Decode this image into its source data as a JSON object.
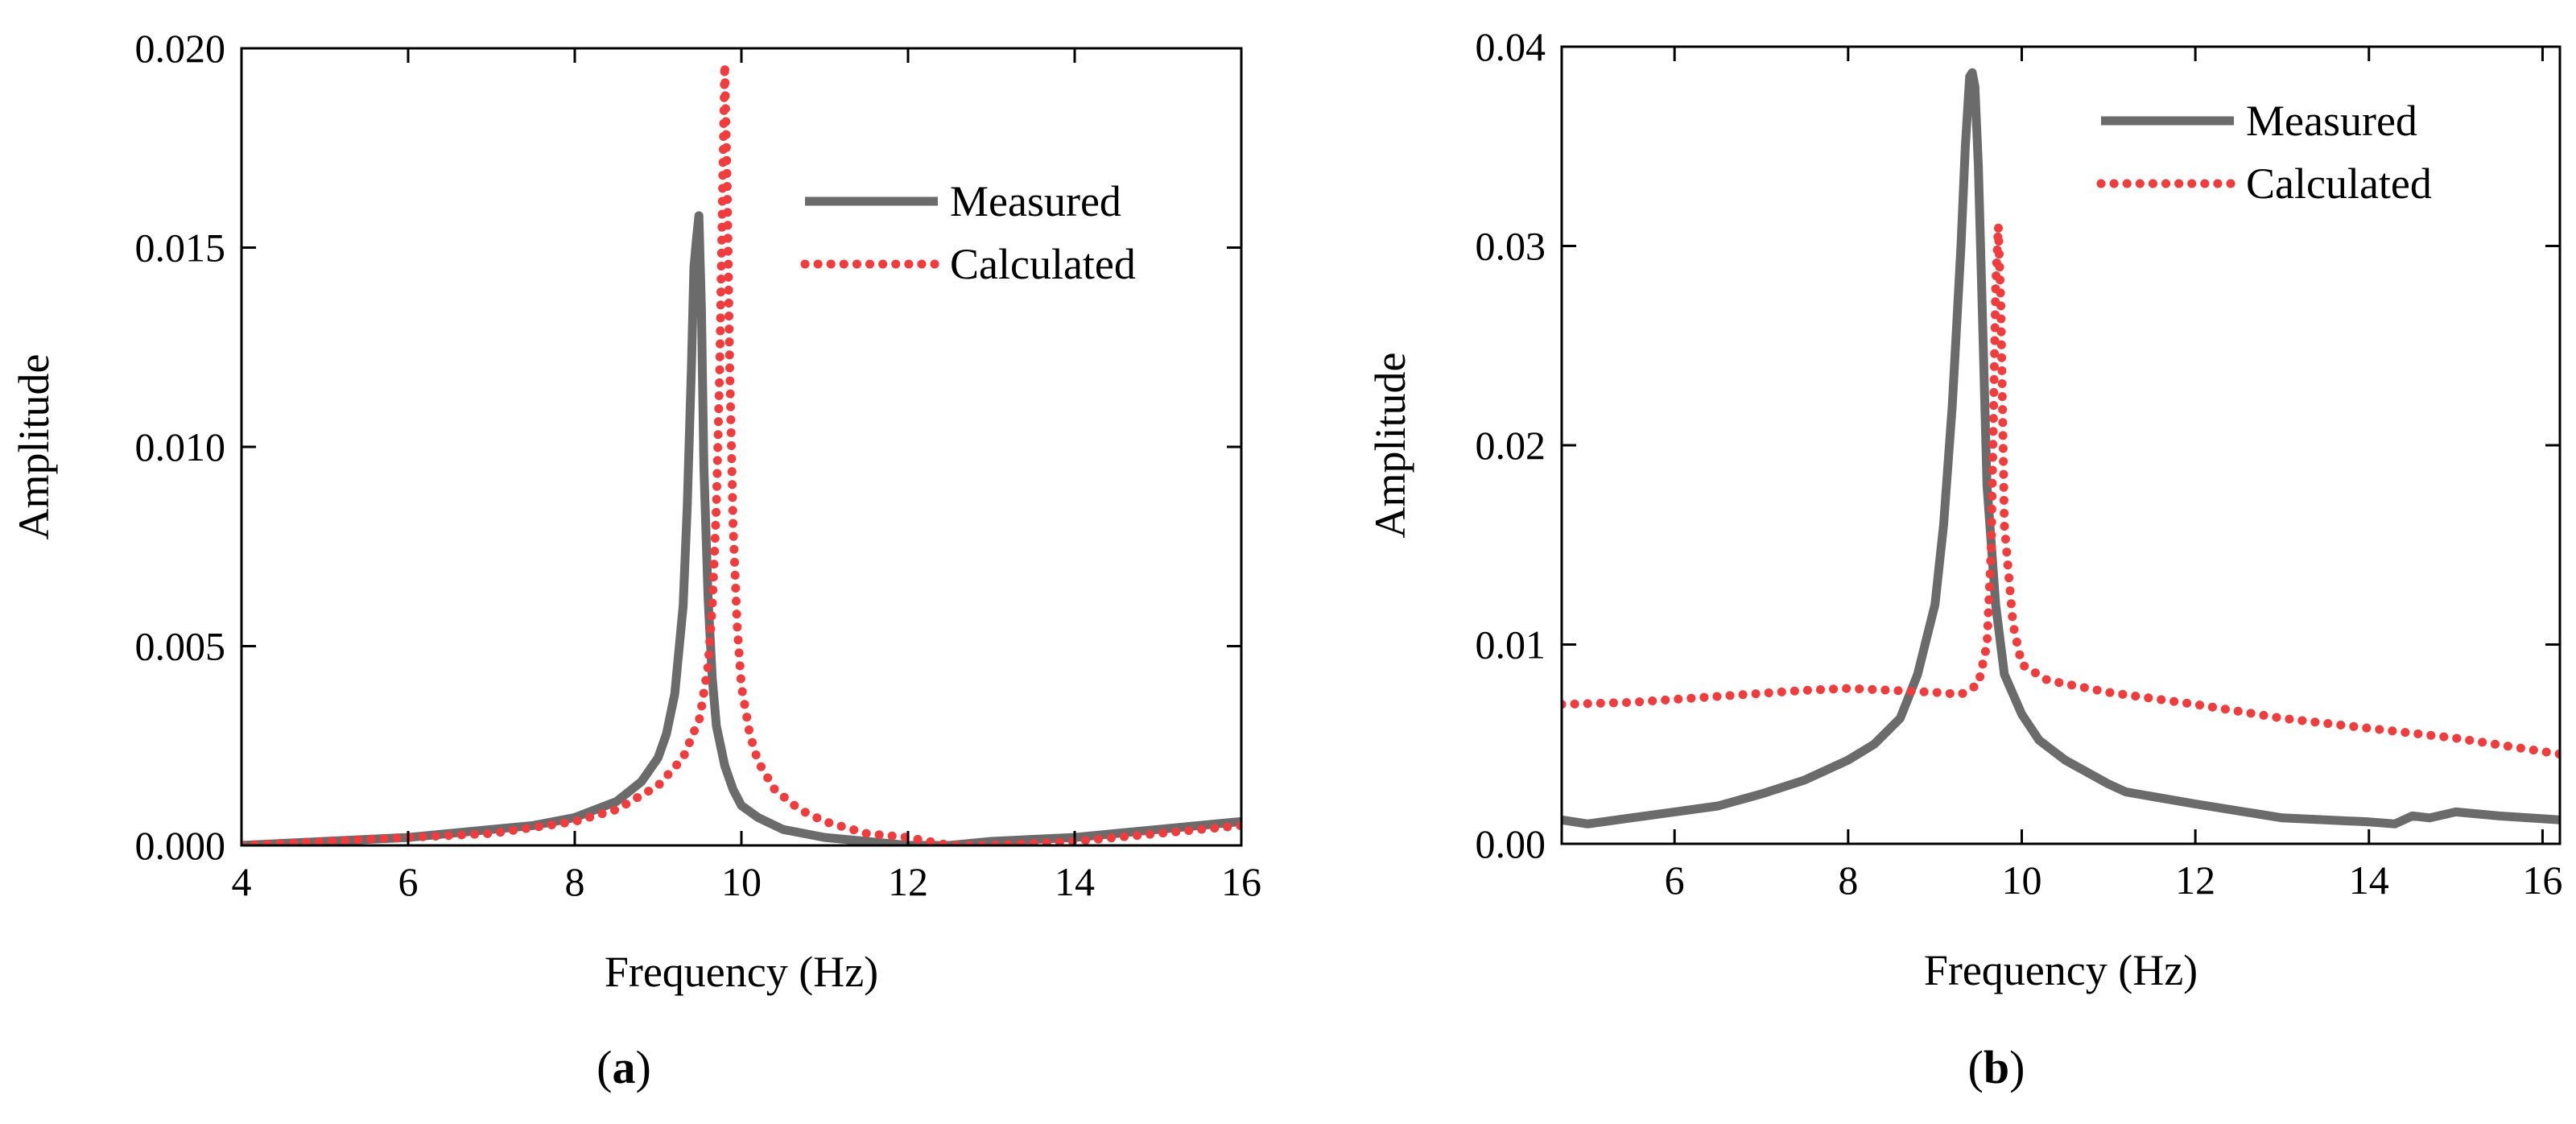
{
  "chart_data": [
    {
      "type": "line",
      "panel_label": "a",
      "xlabel": "Frequency (Hz)",
      "ylabel": "Amplitude",
      "xlim": [
        4,
        16
      ],
      "ylim": [
        0,
        0.02
      ],
      "xticks": [
        4,
        6,
        8,
        10,
        12,
        14,
        16
      ],
      "xtick_labels": [
        "4",
        "6",
        "8",
        "10",
        "12",
        "14",
        "16"
      ],
      "yticks": [
        0,
        0.005,
        0.01,
        0.015,
        0.02
      ],
      "ytick_labels": [
        "0.000",
        "0.005",
        "0.010",
        "0.015",
        "0.020"
      ],
      "grid": false,
      "legend_position": "top-right",
      "series": [
        {
          "name": "Measured",
          "style": "solid",
          "color": "#6b6b6b",
          "x": [
            4.0,
            5.0,
            6.0,
            7.0,
            7.5,
            8.0,
            8.5,
            8.8,
            9.0,
            9.1,
            9.2,
            9.3,
            9.35,
            9.4,
            9.43,
            9.46,
            9.49,
            9.52,
            9.55,
            9.6,
            9.65,
            9.7,
            9.8,
            9.9,
            10.0,
            10.2,
            10.5,
            11.0,
            11.5,
            12.0,
            12.5,
            13.0,
            14.0,
            15.0,
            16.0
          ],
          "y": [
            0.0,
            0.0001,
            0.0002,
            0.0004,
            0.0005,
            0.0007,
            0.0011,
            0.0016,
            0.0022,
            0.0028,
            0.0038,
            0.006,
            0.0085,
            0.012,
            0.0145,
            0.0152,
            0.0158,
            0.0135,
            0.0095,
            0.0062,
            0.0042,
            0.003,
            0.002,
            0.0014,
            0.001,
            0.0007,
            0.0004,
            0.0002,
            0.0001,
            0.0,
            0.0,
            0.0001,
            0.0002,
            0.0004,
            0.0006
          ]
        },
        {
          "name": "Calculated",
          "style": "dotted",
          "color": "#f03c3c",
          "x": [
            4.0,
            5.0,
            6.0,
            7.0,
            8.0,
            8.5,
            9.0,
            9.3,
            9.5,
            9.6,
            9.65,
            9.7,
            9.74,
            9.77,
            9.8,
            9.83,
            9.86,
            9.9,
            9.95,
            10.0,
            10.1,
            10.2,
            10.4,
            10.7,
            11.0,
            11.5,
            12.0,
            12.5,
            13.0,
            14.0,
            15.0,
            16.0
          ],
          "y": [
            0.0,
            0.0001,
            0.0002,
            0.0003,
            0.0006,
            0.0009,
            0.0015,
            0.0022,
            0.0032,
            0.0045,
            0.006,
            0.0085,
            0.012,
            0.016,
            0.0196,
            0.0165,
            0.012,
            0.008,
            0.0055,
            0.004,
            0.0028,
            0.0021,
            0.0014,
            0.0009,
            0.0006,
            0.0003,
            0.0002,
            0.0,
            0.0,
            0.0001,
            0.0003,
            0.0005
          ]
        }
      ]
    },
    {
      "type": "line",
      "panel_label": "b",
      "xlabel": "Frequency (Hz)",
      "ylabel": "Amplitude",
      "xlim": [
        4.7,
        16.2
      ],
      "ylim": [
        0,
        0.04
      ],
      "xticks": [
        6,
        8,
        10,
        12,
        14,
        16
      ],
      "xtick_labels": [
        "6",
        "8",
        "10",
        "12",
        "14",
        "16"
      ],
      "yticks": [
        0,
        0.01,
        0.02,
        0.03,
        0.04
      ],
      "ytick_labels": [
        "0.00",
        "0.01",
        "0.02",
        "0.03",
        "0.04"
      ],
      "grid": false,
      "legend_position": "top-right",
      "series": [
        {
          "name": "Measured",
          "style": "solid",
          "color": "#6b6b6b",
          "x": [
            4.7,
            5.0,
            5.5,
            6.0,
            6.5,
            7.0,
            7.5,
            8.0,
            8.3,
            8.6,
            8.8,
            9.0,
            9.1,
            9.2,
            9.3,
            9.35,
            9.4,
            9.43,
            9.46,
            9.5,
            9.55,
            9.6,
            9.7,
            9.8,
            10.0,
            10.2,
            10.5,
            11.0,
            11.2,
            12.0,
            13.0,
            14.0,
            14.3,
            14.5,
            14.7,
            15.0,
            15.5,
            16.2
          ],
          "y": [
            0.0012,
            0.001,
            0.0013,
            0.0016,
            0.0019,
            0.0025,
            0.0032,
            0.0042,
            0.005,
            0.0063,
            0.0085,
            0.012,
            0.016,
            0.022,
            0.03,
            0.035,
            0.0385,
            0.0387,
            0.038,
            0.034,
            0.026,
            0.018,
            0.012,
            0.0085,
            0.0065,
            0.0052,
            0.0042,
            0.003,
            0.0026,
            0.002,
            0.0013,
            0.0011,
            0.001,
            0.0014,
            0.0013,
            0.0016,
            0.0014,
            0.0012
          ]
        },
        {
          "name": "Calculated",
          "style": "dotted",
          "color": "#f03c3c",
          "x": [
            4.7,
            5.5,
            6.5,
            7.5,
            8.0,
            8.5,
            9.0,
            9.3,
            9.5,
            9.6,
            9.65,
            9.68,
            9.7,
            9.73,
            9.76,
            9.8,
            9.9,
            10.0,
            10.3,
            11.0,
            12.0,
            13.0,
            14.0,
            15.0,
            16.2
          ],
          "y": [
            0.007,
            0.0071,
            0.0074,
            0.0077,
            0.0078,
            0.0077,
            0.0076,
            0.0075,
            0.008,
            0.01,
            0.015,
            0.023,
            0.028,
            0.031,
            0.027,
            0.016,
            0.011,
            0.009,
            0.0082,
            0.0076,
            0.007,
            0.0063,
            0.0058,
            0.0053,
            0.0045
          ]
        }
      ]
    }
  ]
}
